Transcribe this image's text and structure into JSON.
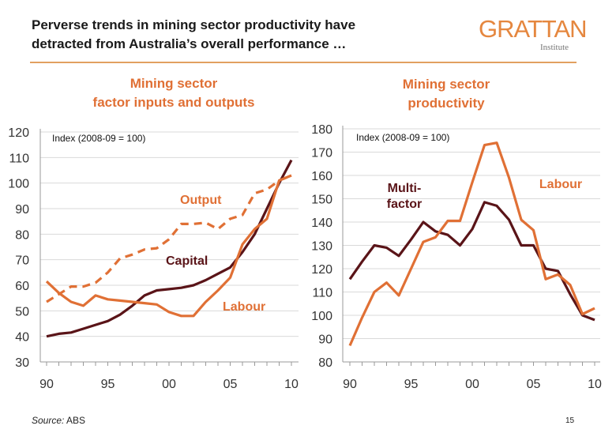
{
  "header": {
    "title_line1": "Perverse trends in mining sector productivity have",
    "title_line2": "detracted from Australia’s overall performance …",
    "logo_main": "GRATTAN",
    "logo_sub": "Institute"
  },
  "footer": {
    "source_prefix": "Source:",
    "source": " ABS",
    "page_number": "15"
  },
  "colors": {
    "orange": "#E07035",
    "dark": "#5A1418",
    "grid": "#D9D9D9",
    "accent_rule": "#E2A060"
  },
  "chart_data": [
    {
      "type": "line",
      "title": "Mining sector factor inputs and outputs",
      "title_line1": "Mining sector",
      "title_line2": "factor inputs and outputs",
      "annotation": "Index (2008-09 = 100)",
      "x": [
        1990,
        1991,
        1992,
        1993,
        1994,
        1995,
        1996,
        1997,
        1998,
        1999,
        2000,
        2001,
        2002,
        2003,
        2004,
        2005,
        2006,
        2007,
        2008,
        2009,
        2010
      ],
      "xticks": [
        "90",
        "95",
        "00",
        "05",
        "10"
      ],
      "xtick_years": [
        1990,
        1995,
        2000,
        2005,
        2010
      ],
      "yticks": [
        30,
        40,
        50,
        60,
        70,
        80,
        90,
        100,
        110,
        120
      ],
      "ylim": [
        30,
        120
      ],
      "grid": true,
      "series": [
        {
          "name": "Output",
          "style": "dashed",
          "color": "#E07035",
          "values": [
            53.5,
            56.5,
            59.5,
            59.5,
            61,
            65,
            70.5,
            72,
            74,
            74.5,
            78,
            84,
            84,
            84.5,
            82,
            86,
            87.5,
            96,
            97.5,
            101,
            103
          ]
        },
        {
          "name": "Capital",
          "style": "solid",
          "color": "#5A1418",
          "values": [
            40,
            41,
            41.5,
            43,
            44.5,
            46,
            48.5,
            52,
            56,
            58,
            58.5,
            59,
            60,
            62,
            64.5,
            67,
            73,
            80,
            90,
            100,
            109
          ]
        },
        {
          "name": "Labour",
          "style": "solid",
          "color": "#E07035",
          "values": [
            61.5,
            57,
            53.5,
            52,
            56,
            54.5,
            54,
            53.5,
            53,
            52.5,
            49.5,
            48,
            48,
            53.5,
            58,
            63,
            76,
            82,
            86,
            101,
            103
          ]
        }
      ]
    },
    {
      "type": "line",
      "title": "Mining sector productivity",
      "title_line1": "Mining sector",
      "title_line2": "productivity",
      "annotation": "Index (2008-09 = 100)",
      "x": [
        1990,
        1991,
        1992,
        1993,
        1994,
        1995,
        1996,
        1997,
        1998,
        1999,
        2000,
        2001,
        2002,
        2003,
        2004,
        2005,
        2006,
        2007,
        2008,
        2009,
        2010
      ],
      "xticks": [
        "90",
        "95",
        "00",
        "05",
        "10"
      ],
      "xtick_years": [
        1990,
        1995,
        2000,
        2005,
        2010
      ],
      "yticks": [
        80,
        90,
        100,
        110,
        120,
        130,
        140,
        150,
        160,
        170,
        180
      ],
      "ylim": [
        80,
        180
      ],
      "grid": true,
      "series": [
        {
          "name": "Multi-factor",
          "label_line1": "Multi-",
          "label_line2": "factor",
          "style": "solid",
          "color": "#5A1418",
          "values": [
            115.5,
            123,
            130,
            129,
            125.5,
            132.5,
            140,
            136,
            134.5,
            130,
            137,
            148.5,
            147,
            141,
            130,
            130,
            120,
            119,
            109,
            100,
            98
          ]
        },
        {
          "name": "Labour",
          "style": "solid",
          "color": "#E07035",
          "values": [
            87,
            99,
            110,
            114,
            108.5,
            120,
            131.5,
            133.5,
            140.5,
            140.5,
            157,
            173,
            174,
            159,
            141,
            136.5,
            115.5,
            117.5,
            113,
            100.5,
            103
          ]
        }
      ]
    }
  ]
}
